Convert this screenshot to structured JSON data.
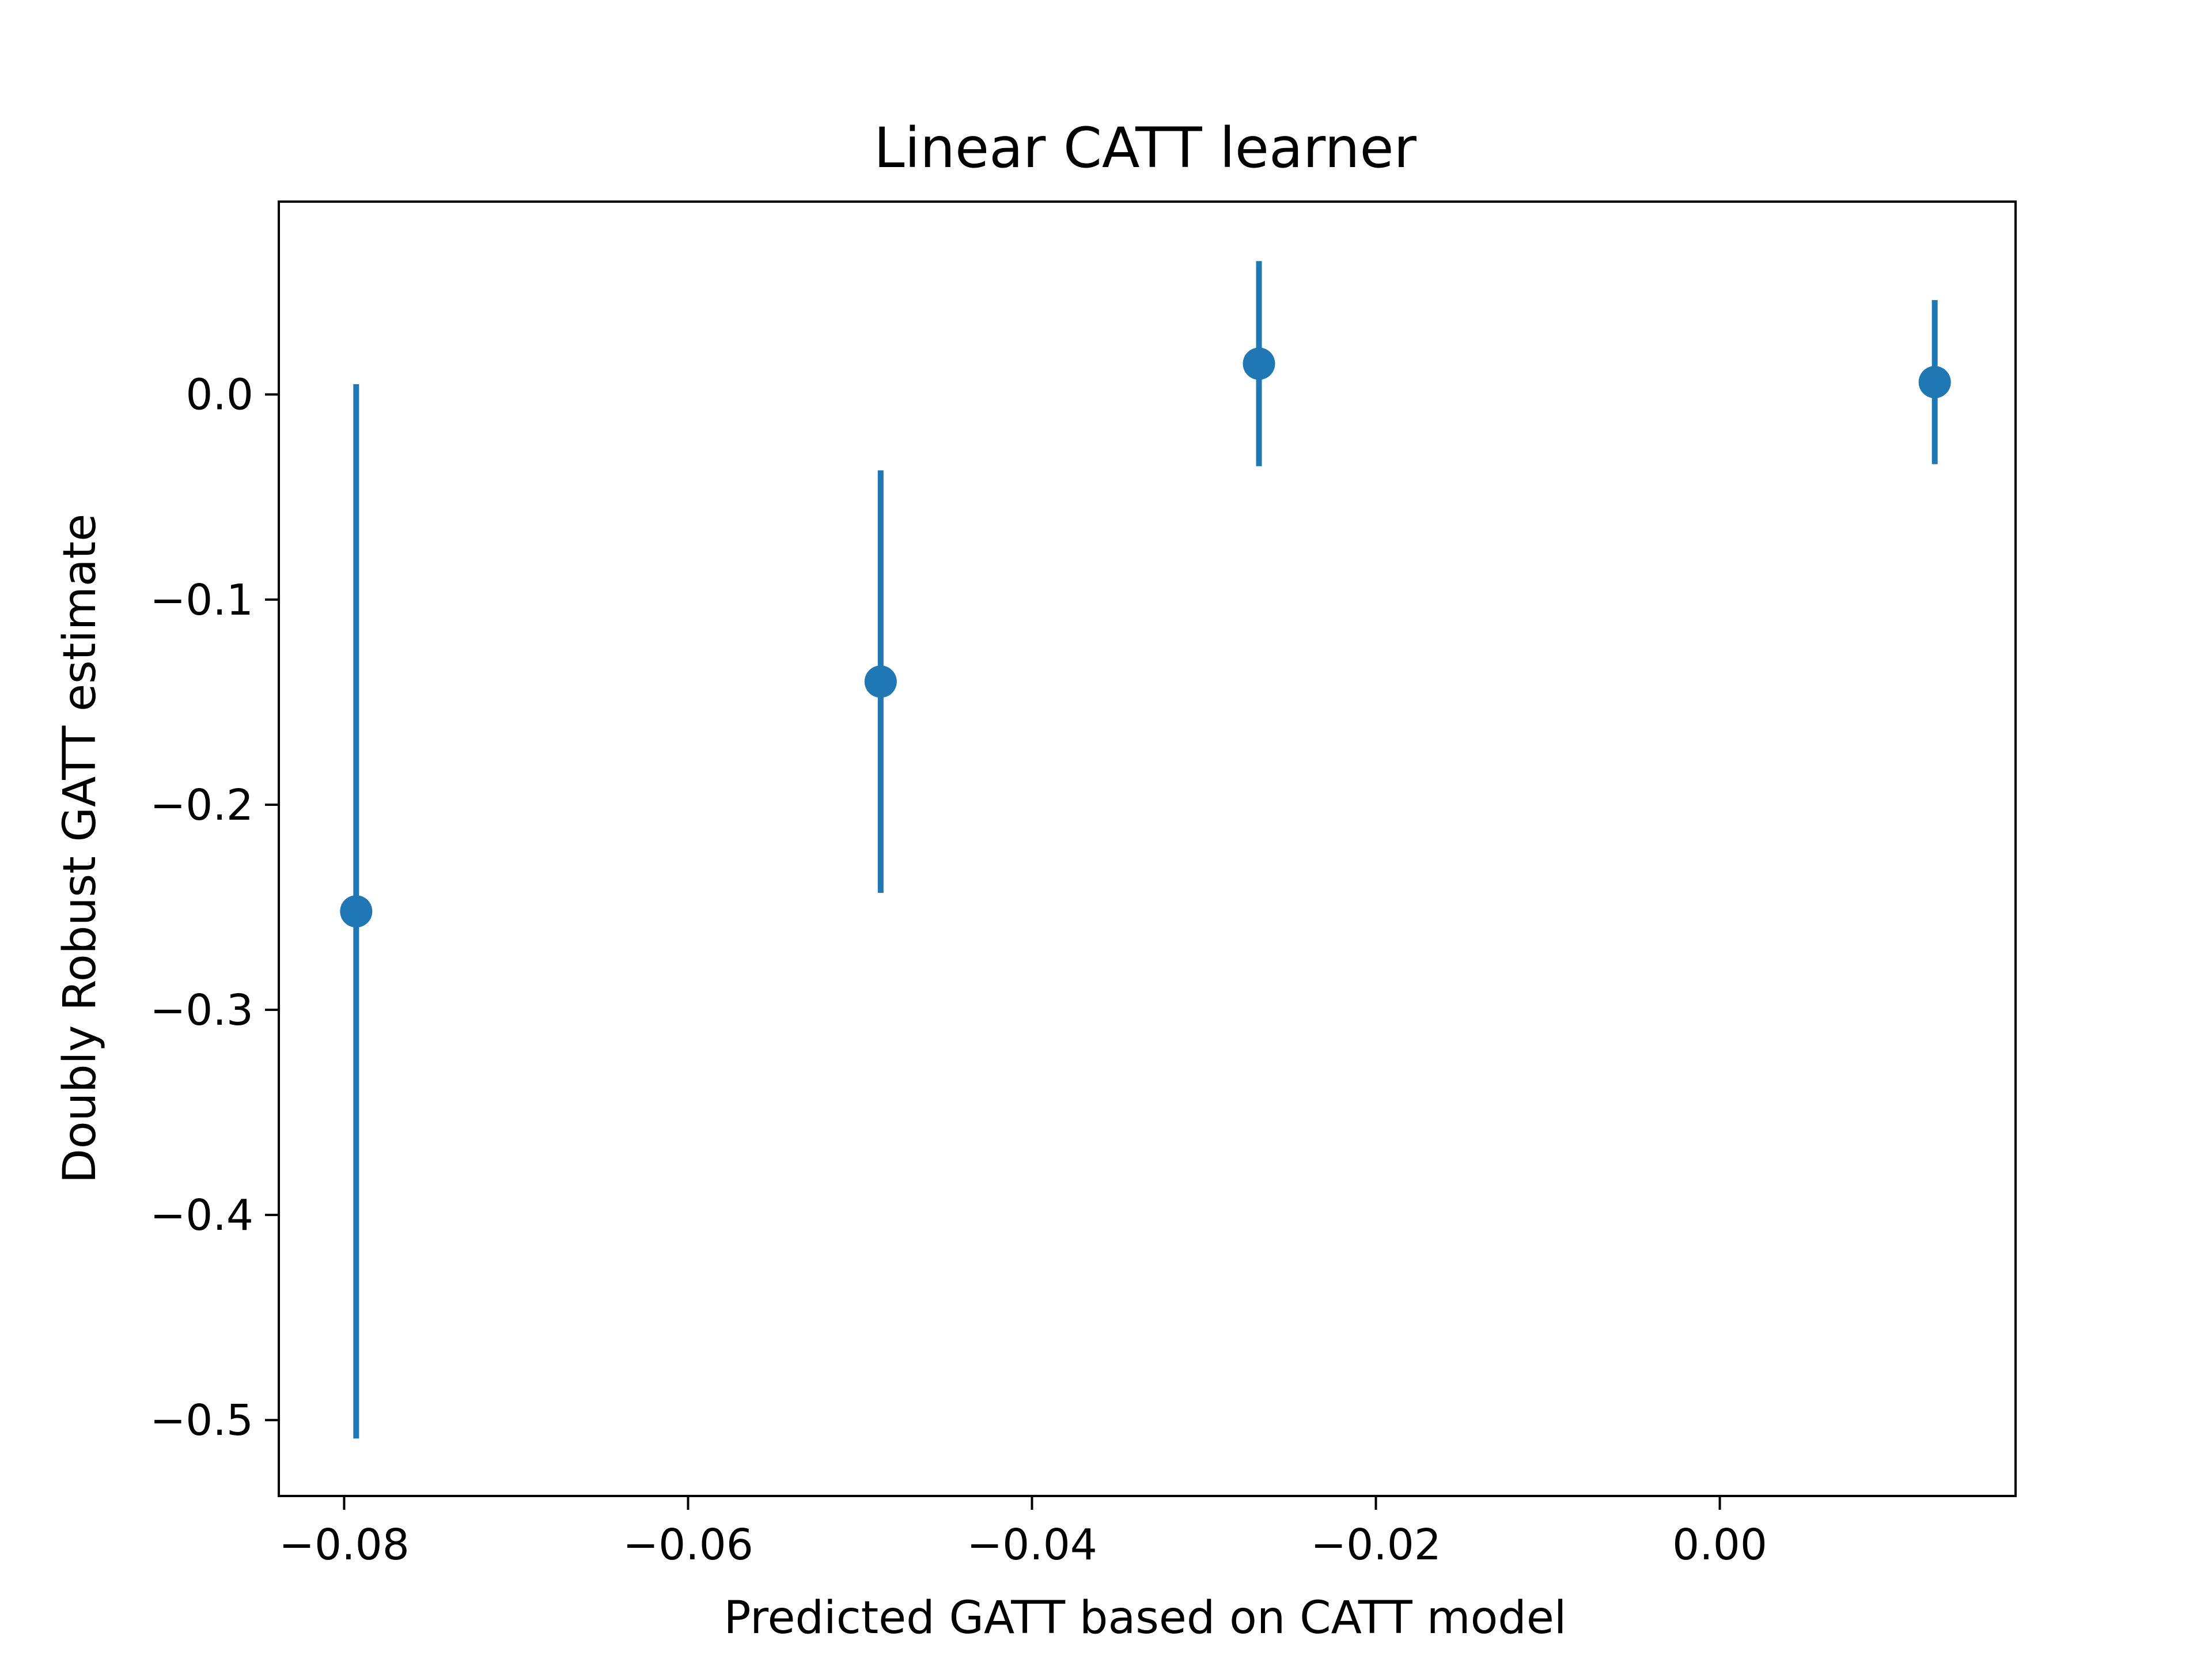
{
  "chart_data": {
    "type": "scatter",
    "title": "Linear CATT learner",
    "xlabel": "Predicted GATT based on CATT model",
    "ylabel": "Doubly Robust GATT estimate",
    "xlim": [
      -0.0838,
      0.0172
    ],
    "ylim": [
      -0.537,
      0.094
    ],
    "xticks": [
      -0.08,
      -0.06,
      -0.04,
      -0.02,
      0.0
    ],
    "xtick_labels": [
      "−0.08",
      "−0.06",
      "−0.04",
      "−0.02",
      "0.00"
    ],
    "yticks": [
      0.0,
      -0.1,
      -0.2,
      -0.3,
      -0.4,
      -0.5
    ],
    "ytick_labels": [
      "0.0",
      "−0.1",
      "−0.2",
      "−0.3",
      "−0.4",
      "−0.5"
    ],
    "grid": false,
    "series": [
      {
        "color": "#1f77b4",
        "points": [
          {
            "x": -0.0793,
            "y": -0.252,
            "ylo": -0.509,
            "yhi": 0.005
          },
          {
            "x": -0.0488,
            "y": -0.14,
            "ylo": -0.243,
            "yhi": -0.037
          },
          {
            "x": -0.0268,
            "y": 0.015,
            "ylo": -0.035,
            "yhi": 0.065
          },
          {
            "x": 0.0125,
            "y": 0.006,
            "ylo": -0.034,
            "yhi": 0.046
          }
        ]
      }
    ]
  }
}
